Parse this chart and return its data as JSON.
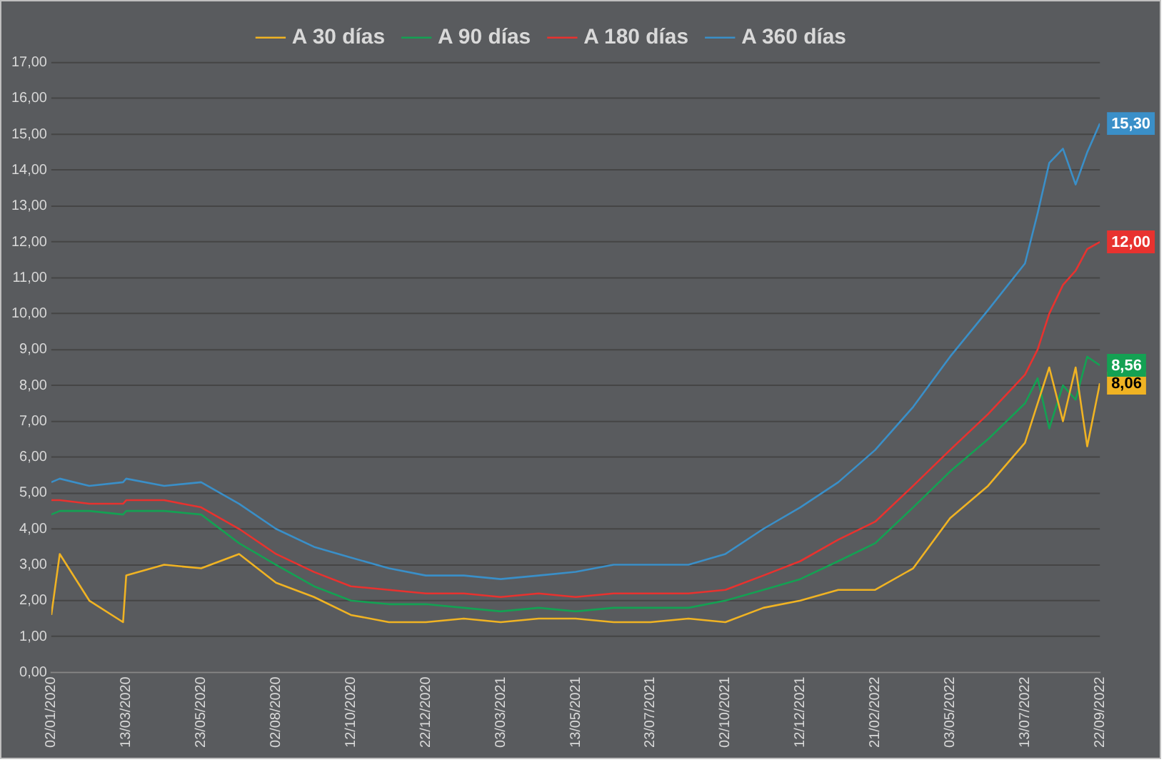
{
  "chart_data": {
    "type": "line",
    "x": [
      "2020-01-02",
      "2020-01-10",
      "2020-02-07",
      "2020-03-10",
      "2020-03-13",
      "2020-04-18",
      "2020-05-23",
      "2020-06-28",
      "2020-08-02",
      "2020-09-07",
      "2020-10-12",
      "2020-11-17",
      "2020-12-22",
      "2021-01-27",
      "2021-03-03",
      "2021-04-08",
      "2021-05-13",
      "2021-06-18",
      "2021-07-23",
      "2021-08-28",
      "2021-10-02",
      "2021-11-07",
      "2021-12-12",
      "2022-01-17",
      "2022-02-21",
      "2022-03-29",
      "2022-05-03",
      "2022-06-08",
      "2022-07-13",
      "2022-07-25",
      "2022-08-05",
      "2022-08-18",
      "2022-08-30",
      "2022-09-10",
      "2022-09-22"
    ],
    "series": [
      {
        "name": "A 30 días",
        "color": "#f0b323",
        "values": [
          1.6,
          3.3,
          2.0,
          1.4,
          2.7,
          3.0,
          2.9,
          3.3,
          2.5,
          2.1,
          1.6,
          1.4,
          1.4,
          1.5,
          1.4,
          1.5,
          1.5,
          1.4,
          1.4,
          1.5,
          1.4,
          1.8,
          2.0,
          2.3,
          2.3,
          2.9,
          4.3,
          5.2,
          6.4,
          7.5,
          8.5,
          7.0,
          8.5,
          6.3,
          8.06
        ],
        "value_labels": [
          null,
          null,
          null,
          null,
          null,
          null,
          null,
          null,
          null,
          null,
          null,
          null,
          null,
          null,
          null,
          null,
          null,
          null,
          null,
          null,
          null,
          null,
          null,
          null,
          null,
          null,
          null,
          null,
          null,
          null,
          null,
          null,
          null,
          null,
          "8,06"
        ]
      },
      {
        "name": "A 90 días",
        "color": "#14a153",
        "values": [
          4.4,
          4.5,
          4.5,
          4.4,
          4.5,
          4.5,
          4.4,
          3.6,
          3.0,
          2.4,
          2.0,
          1.9,
          1.9,
          1.8,
          1.7,
          1.8,
          1.7,
          1.8,
          1.8,
          1.8,
          2.0,
          2.3,
          2.6,
          3.1,
          3.6,
          4.6,
          5.6,
          6.5,
          7.5,
          8.2,
          6.8,
          8.0,
          7.6,
          8.8,
          8.56
        ],
        "value_labels": [
          null,
          null,
          null,
          null,
          null,
          null,
          null,
          null,
          null,
          null,
          null,
          null,
          null,
          null,
          null,
          null,
          null,
          null,
          null,
          null,
          null,
          null,
          null,
          null,
          null,
          null,
          null,
          null,
          null,
          null,
          null,
          null,
          null,
          null,
          "8,56"
        ]
      },
      {
        "name": "A 180 días",
        "color": "#e8322f",
        "values": [
          4.8,
          4.8,
          4.7,
          4.7,
          4.8,
          4.8,
          4.6,
          4.0,
          3.3,
          2.8,
          2.4,
          2.3,
          2.2,
          2.2,
          2.1,
          2.2,
          2.1,
          2.2,
          2.2,
          2.2,
          2.3,
          2.7,
          3.1,
          3.7,
          4.2,
          5.2,
          6.2,
          7.2,
          8.3,
          9.0,
          10.0,
          10.8,
          11.2,
          11.8,
          12.0
        ],
        "value_labels": [
          null,
          null,
          null,
          null,
          null,
          null,
          null,
          null,
          null,
          null,
          null,
          null,
          null,
          null,
          null,
          null,
          null,
          null,
          null,
          null,
          null,
          null,
          null,
          null,
          null,
          null,
          null,
          null,
          null,
          null,
          null,
          null,
          null,
          null,
          "12,00"
        ]
      },
      {
        "name": "A 360 días",
        "color": "#3a8fc8",
        "values": [
          5.3,
          5.4,
          5.2,
          5.3,
          5.4,
          5.2,
          5.3,
          4.7,
          4.0,
          3.5,
          3.2,
          2.9,
          2.7,
          2.7,
          2.6,
          2.7,
          2.8,
          3.0,
          3.0,
          3.0,
          3.3,
          4.0,
          4.6,
          5.3,
          6.2,
          7.4,
          8.8,
          10.1,
          11.4,
          12.8,
          14.2,
          14.6,
          13.6,
          14.5,
          15.3
        ],
        "value_labels": [
          null,
          null,
          null,
          null,
          null,
          null,
          null,
          null,
          null,
          null,
          null,
          null,
          null,
          null,
          null,
          null,
          null,
          null,
          null,
          null,
          null,
          null,
          null,
          null,
          null,
          null,
          null,
          null,
          null,
          null,
          null,
          null,
          null,
          null,
          "15,30"
        ]
      }
    ],
    "xlim": [
      "2020-01-02",
      "2022-09-22"
    ],
    "xticks": [
      {
        "value": "2020-01-02",
        "label": "02/01/2020"
      },
      {
        "value": "2020-03-13",
        "label": "13/03/2020"
      },
      {
        "value": "2020-05-23",
        "label": "23/05/2020"
      },
      {
        "value": "2020-08-02",
        "label": "02/08/2020"
      },
      {
        "value": "2020-10-12",
        "label": "12/10/2020"
      },
      {
        "value": "2020-12-22",
        "label": "22/12/2020"
      },
      {
        "value": "2021-03-03",
        "label": "03/03/2021"
      },
      {
        "value": "2021-05-13",
        "label": "13/05/2021"
      },
      {
        "value": "2021-07-23",
        "label": "23/07/2021"
      },
      {
        "value": "2021-10-02",
        "label": "02/10/2021"
      },
      {
        "value": "2021-12-12",
        "label": "12/12/2021"
      },
      {
        "value": "2022-02-21",
        "label": "21/02/2022"
      },
      {
        "value": "2022-05-03",
        "label": "03/05/2022"
      },
      {
        "value": "2022-07-13",
        "label": "13/07/2022"
      },
      {
        "value": "2022-09-22",
        "label": "22/09/2022"
      }
    ],
    "ylim": [
      0,
      17
    ],
    "yticks": [
      {
        "value": 0,
        "label": "0,00"
      },
      {
        "value": 1,
        "label": "1,00"
      },
      {
        "value": 2,
        "label": "2,00"
      },
      {
        "value": 3,
        "label": "3,00"
      },
      {
        "value": 4,
        "label": "4,00"
      },
      {
        "value": 5,
        "label": "5,00"
      },
      {
        "value": 6,
        "label": "6,00"
      },
      {
        "value": 7,
        "label": "7,00"
      },
      {
        "value": 8,
        "label": "8,00"
      },
      {
        "value": 9,
        "label": "9,00"
      },
      {
        "value": 10,
        "label": "10,00"
      },
      {
        "value": 11,
        "label": "11,00"
      },
      {
        "value": 12,
        "label": "12,00"
      },
      {
        "value": 13,
        "label": "13,00"
      },
      {
        "value": 14,
        "label": "14,00"
      },
      {
        "value": 15,
        "label": "15,00"
      },
      {
        "value": 16,
        "label": "16,00"
      },
      {
        "value": 17,
        "label": "17,00"
      }
    ],
    "grid": "y",
    "legend": "top",
    "marker": "none",
    "line_style": "solid"
  }
}
